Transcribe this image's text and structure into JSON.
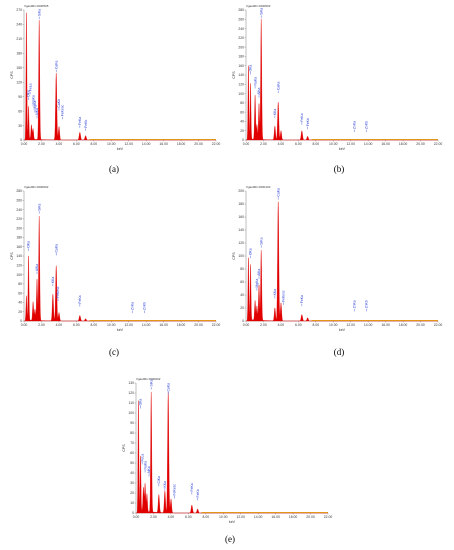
{
  "figure": {
    "axis_color": "#808080",
    "spectrum_color": "#e00000",
    "baseline_color": "#e8c800",
    "label_color": "#2a3fd6"
  },
  "chart_data": [
    {
      "type": "area",
      "caption": "(a)",
      "header": "Vgas001 0000505",
      "xlabel": "keV",
      "ylabel": "CPS",
      "xlim": [
        0,
        22
      ],
      "ylim": [
        0,
        270
      ],
      "xticks": [
        "0.00",
        "2.00",
        "4.00",
        "6.00",
        "8.00",
        "10.00",
        "12.00",
        "14.00",
        "16.00",
        "18.00",
        "20.00",
        "22.00"
      ],
      "yticks": [
        "0",
        "30",
        "60",
        "90",
        "120",
        "150",
        "180",
        "210",
        "240",
        "270"
      ],
      "peaks": [
        {
          "x": 0.28,
          "y": 262,
          "w": 0.05
        },
        {
          "x": 0.52,
          "y": 68,
          "w": 0.05
        },
        {
          "x": 0.85,
          "y": 30,
          "w": 0.06
        },
        {
          "x": 1.04,
          "y": 22,
          "w": 0.06
        },
        {
          "x": 1.74,
          "y": 248,
          "w": 0.06
        },
        {
          "x": 3.69,
          "y": 140,
          "w": 0.07
        },
        {
          "x": 4.01,
          "y": 28,
          "w": 0.07
        },
        {
          "x": 6.4,
          "y": 16,
          "w": 0.08
        },
        {
          "x": 7.06,
          "y": 9,
          "w": 0.08
        }
      ],
      "labels": [
        {
          "text": "SiKa",
          "x": 1.74,
          "y": 250
        },
        {
          "text": "CaKa",
          "x": 3.69,
          "y": 140
        },
        {
          "text": "CaKb",
          "x": 4.01,
          "y": 60
        },
        {
          "text": "FeKesc",
          "x": 4.4,
          "y": 42
        },
        {
          "text": "FeKa",
          "x": 6.4,
          "y": 24
        },
        {
          "text": "FeKb",
          "x": 7.06,
          "y": 18
        },
        {
          "text": "FeLa",
          "x": 0.7,
          "y": 94
        },
        {
          "text": "OKa",
          "x": 0.52,
          "y": 82
        },
        {
          "text": "NaKa",
          "x": 1.04,
          "y": 68
        },
        {
          "text": "MgKa",
          "x": 1.25,
          "y": 56
        },
        {
          "text": "AlKa",
          "x": 1.49,
          "y": 44
        }
      ]
    },
    {
      "type": "area",
      "caption": "(b)",
      "header": "Vgas001 0000503",
      "xlabel": "keV",
      "ylabel": "CPS",
      "xlim": [
        0,
        22
      ],
      "ylim": [
        0,
        280
      ],
      "xticks": [
        "0.00",
        "2.00",
        "4.00",
        "6.00",
        "8.00",
        "10.00",
        "12.00",
        "14.00",
        "16.00",
        "18.00",
        "20.00",
        "22.00"
      ],
      "yticks": [
        "0",
        "20",
        "40",
        "60",
        "80",
        "100",
        "120",
        "140",
        "160",
        "180",
        "200",
        "220",
        "240",
        "260",
        "280"
      ],
      "peaks": [
        {
          "x": 0.28,
          "y": 158,
          "w": 0.05
        },
        {
          "x": 0.52,
          "y": 120,
          "w": 0.05
        },
        {
          "x": 1.04,
          "y": 95,
          "w": 0.06
        },
        {
          "x": 1.25,
          "y": 32,
          "w": 0.06
        },
        {
          "x": 1.49,
          "y": 78,
          "w": 0.06
        },
        {
          "x": 1.74,
          "y": 260,
          "w": 0.06
        },
        {
          "x": 3.31,
          "y": 30,
          "w": 0.07
        },
        {
          "x": 3.69,
          "y": 82,
          "w": 0.07
        },
        {
          "x": 4.01,
          "y": 20,
          "w": 0.07
        },
        {
          "x": 6.4,
          "y": 20,
          "w": 0.08
        },
        {
          "x": 7.06,
          "y": 8,
          "w": 0.08
        }
      ],
      "labels": [
        {
          "text": "SiKa",
          "x": 1.74,
          "y": 262
        },
        {
          "text": "OKa",
          "x": 0.52,
          "y": 140
        },
        {
          "text": "NaKa",
          "x": 1.04,
          "y": 110
        },
        {
          "text": "AlKa",
          "x": 1.49,
          "y": 90
        },
        {
          "text": "CaKa",
          "x": 3.69,
          "y": 100
        },
        {
          "text": "KKa",
          "x": 3.31,
          "y": 46
        },
        {
          "text": "FeKa",
          "x": 6.4,
          "y": 32
        },
        {
          "text": "FeKb",
          "x": 7.06,
          "y": 22
        },
        {
          "text": "ZnKa",
          "x": 12.4,
          "y": 16
        },
        {
          "text": "ZnKb",
          "x": 13.8,
          "y": 16
        }
      ]
    },
    {
      "type": "area",
      "caption": "(c)",
      "header": "Vgas001 0000002",
      "xlabel": "keV",
      "ylabel": "CPS",
      "xlim": [
        0,
        22
      ],
      "ylim": [
        0,
        280
      ],
      "xticks": [
        "0.00",
        "2.00",
        "4.00",
        "6.00",
        "8.00",
        "10.00",
        "12.00",
        "14.00",
        "16.00",
        "18.00",
        "20.00",
        "22.00"
      ],
      "yticks": [
        "0",
        "20",
        "40",
        "60",
        "80",
        "100",
        "120",
        "140",
        "160",
        "180",
        "200",
        "220",
        "240",
        "260",
        "280"
      ],
      "peaks": [
        {
          "x": 0.28,
          "y": 52,
          "w": 0.05
        },
        {
          "x": 0.52,
          "y": 138,
          "w": 0.05
        },
        {
          "x": 1.04,
          "y": 40,
          "w": 0.06
        },
        {
          "x": 1.25,
          "y": 24,
          "w": 0.06
        },
        {
          "x": 1.49,
          "y": 90,
          "w": 0.06
        },
        {
          "x": 1.74,
          "y": 225,
          "w": 0.06
        },
        {
          "x": 3.31,
          "y": 58,
          "w": 0.07
        },
        {
          "x": 3.69,
          "y": 120,
          "w": 0.07
        },
        {
          "x": 4.01,
          "y": 18,
          "w": 0.07
        },
        {
          "x": 6.4,
          "y": 12,
          "w": 0.08
        },
        {
          "x": 7.06,
          "y": 5,
          "w": 0.08
        }
      ],
      "labels": [
        {
          "text": "SiKa",
          "x": 1.74,
          "y": 230
        },
        {
          "text": "OKa",
          "x": 0.52,
          "y": 150
        },
        {
          "text": "AlKa",
          "x": 1.49,
          "y": 100
        },
        {
          "text": "CaKa",
          "x": 3.69,
          "y": 140
        },
        {
          "text": "KKa",
          "x": 3.31,
          "y": 74
        },
        {
          "text": "FeKesc",
          "x": 3.9,
          "y": 42
        },
        {
          "text": "FeKa",
          "x": 6.4,
          "y": 30
        },
        {
          "text": "ZnKa",
          "x": 12.4,
          "y": 16
        },
        {
          "text": "ZnKb",
          "x": 13.8,
          "y": 16
        }
      ]
    },
    {
      "type": "area",
      "caption": "(d)",
      "header": "Vgas001 0000103",
      "xlabel": "keV",
      "ylabel": "CPS",
      "xlim": [
        0,
        22
      ],
      "ylim": [
        0,
        200
      ],
      "xticks": [
        "0.00",
        "2.00",
        "4.00",
        "6.00",
        "8.00",
        "10.00",
        "12.00",
        "14.00",
        "16.00",
        "18.00",
        "20.00",
        "22.00"
      ],
      "yticks": [
        "0",
        "20",
        "40",
        "60",
        "80",
        "100",
        "120",
        "140",
        "160",
        "180",
        "200"
      ],
      "peaks": [
        {
          "x": 0.28,
          "y": 95,
          "w": 0.05
        },
        {
          "x": 0.52,
          "y": 85,
          "w": 0.05
        },
        {
          "x": 1.04,
          "y": 30,
          "w": 0.06
        },
        {
          "x": 1.25,
          "y": 22,
          "w": 0.06
        },
        {
          "x": 1.49,
          "y": 55,
          "w": 0.06
        },
        {
          "x": 1.74,
          "y": 108,
          "w": 0.06
        },
        {
          "x": 3.31,
          "y": 20,
          "w": 0.07
        },
        {
          "x": 3.69,
          "y": 185,
          "w": 0.07
        },
        {
          "x": 4.01,
          "y": 28,
          "w": 0.07
        },
        {
          "x": 6.4,
          "y": 10,
          "w": 0.08
        },
        {
          "x": 7.06,
          "y": 5,
          "w": 0.08
        }
      ],
      "labels": [
        {
          "text": "CaKa",
          "x": 3.69,
          "y": 186
        },
        {
          "text": "SiKa",
          "x": 1.74,
          "y": 112
        },
        {
          "text": "OKa",
          "x": 0.52,
          "y": 96
        },
        {
          "text": "AlKa",
          "x": 1.49,
          "y": 64
        },
        {
          "text": "MgKa",
          "x": 1.25,
          "y": 46
        },
        {
          "text": "KKa",
          "x": 3.31,
          "y": 34
        },
        {
          "text": "FeKesc",
          "x": 4.3,
          "y": 24
        },
        {
          "text": "FeKa",
          "x": 6.4,
          "y": 22
        },
        {
          "text": "ZnKa",
          "x": 12.4,
          "y": 14
        },
        {
          "text": "ZnKb",
          "x": 13.8,
          "y": 14
        }
      ]
    },
    {
      "type": "area",
      "caption": "(e)",
      "header": "Vgas001 0000002",
      "xlabel": "keV",
      "ylabel": "CPS",
      "xlim": [
        0,
        22
      ],
      "ylim": [
        0,
        130
      ],
      "xticks": [
        "0.00",
        "2.00",
        "4.00",
        "6.00",
        "8.00",
        "10.00",
        "12.00",
        "14.00",
        "16.00",
        "18.00",
        "20.00",
        "22.00"
      ],
      "yticks": [
        "0",
        "10",
        "20",
        "30",
        "40",
        "50",
        "60",
        "70",
        "80",
        "90",
        "100",
        "110",
        "120",
        "130"
      ],
      "peaks": [
        {
          "x": 0.28,
          "y": 110,
          "w": 0.05
        },
        {
          "x": 0.52,
          "y": 55,
          "w": 0.05
        },
        {
          "x": 0.85,
          "y": 24,
          "w": 0.06
        },
        {
          "x": 1.04,
          "y": 28,
          "w": 0.06
        },
        {
          "x": 1.25,
          "y": 18,
          "w": 0.06
        },
        {
          "x": 1.74,
          "y": 120,
          "w": 0.06
        },
        {
          "x": 2.62,
          "y": 18,
          "w": 0.07
        },
        {
          "x": 3.31,
          "y": 22,
          "w": 0.07
        },
        {
          "x": 3.69,
          "y": 122,
          "w": 0.07
        },
        {
          "x": 4.01,
          "y": 14,
          "w": 0.07
        },
        {
          "x": 6.4,
          "y": 8,
          "w": 0.08
        },
        {
          "x": 7.06,
          "y": 4,
          "w": 0.08
        }
      ],
      "labels": [
        {
          "text": "SiKa",
          "x": 1.74,
          "y": 123
        },
        {
          "text": "CaKa",
          "x": 3.69,
          "y": 118
        },
        {
          "text": "OKa",
          "x": 0.52,
          "y": 104
        },
        {
          "text": "FeLa",
          "x": 0.7,
          "y": 48
        },
        {
          "text": "NaKa",
          "x": 1.04,
          "y": 40
        },
        {
          "text": "AlKa",
          "x": 1.49,
          "y": 36
        },
        {
          "text": "ClKa",
          "x": 2.62,
          "y": 26
        },
        {
          "text": "KKa",
          "x": 3.31,
          "y": 22
        },
        {
          "text": "FeKesc",
          "x": 4.4,
          "y": 14
        },
        {
          "text": "FeKa",
          "x": 6.4,
          "y": 18
        },
        {
          "text": "FeKb",
          "x": 7.06,
          "y": 12
        }
      ]
    }
  ]
}
